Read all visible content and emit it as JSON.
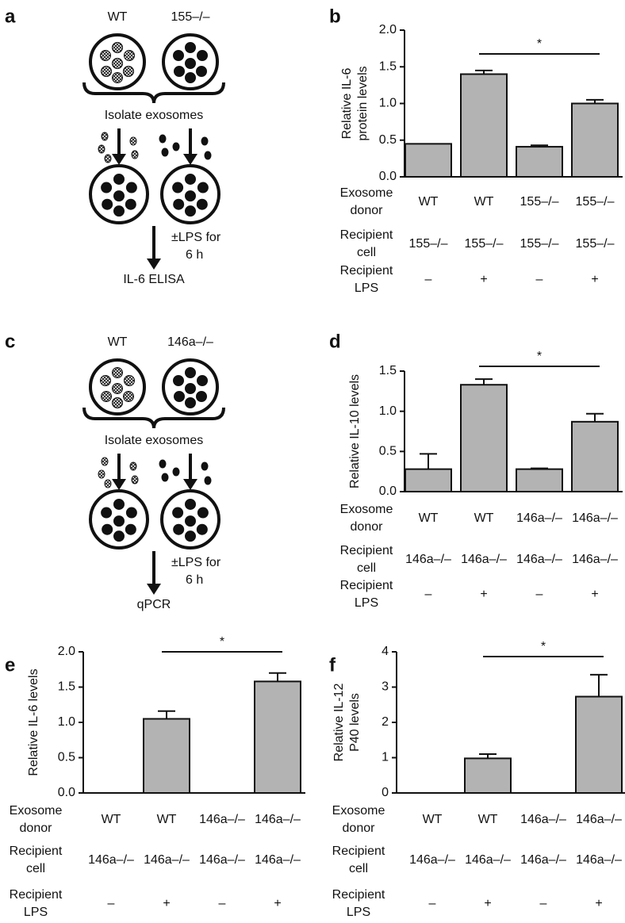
{
  "diagrams": [
    {
      "panel": "a",
      "left": "WT",
      "right": "155–/–",
      "step": "Isolate exosomes",
      "treatment": [
        "±LPS for",
        "6 h"
      ],
      "readout": "IL-6 ELISA"
    },
    {
      "panel": "c",
      "left": "WT",
      "right": "146a–/–",
      "step": "Isolate exosomes",
      "treatment": [
        "±LPS for",
        "6 h"
      ],
      "readout": "qPCR"
    }
  ],
  "chart_data": [
    {
      "panel": "b",
      "type": "bar",
      "ylabel": [
        "Relative IL-6",
        "protein levels"
      ],
      "color": "#b3b3b3",
      "categories": [
        "WT",
        "WT",
        "155–/–",
        "155–/–"
      ],
      "recipient_cell": [
        "155–/–",
        "155–/–",
        "155–/–",
        "155–/–"
      ],
      "recipient_lps": [
        "–",
        "+",
        "–",
        "+"
      ],
      "row_labels": [
        [
          "Exosome",
          "donor"
        ],
        [
          "Recipient",
          "cell"
        ],
        [
          "Recipient",
          "LPS"
        ]
      ],
      "values": [
        0.45,
        1.4,
        0.41,
        1.0
      ],
      "errors": [
        0,
        0.05,
        0.02,
        0.05
      ],
      "annotation": "*",
      "ylim": [
        0,
        2
      ],
      "yticks": [
        {
          "value": 0,
          "label": "0.0"
        },
        0.5,
        {
          "value": 1,
          "label": "1.0"
        },
        1.5,
        {
          "value": 2,
          "label": "2.0"
        }
      ]
    },
    {
      "panel": "d",
      "type": "bar",
      "ylabel": [
        "Relative IL-10 levels"
      ],
      "color": "#b3b3b3",
      "categories": [
        "WT",
        "WT",
        "146a–/–",
        "146a–/–"
      ],
      "recipient_cell": [
        "146a–/–",
        "146a–/–",
        "146a–/–",
        "146a–/–"
      ],
      "recipient_lps": [
        "–",
        "+",
        "–",
        "+"
      ],
      "row_labels": [
        [
          "Exosome",
          "donor"
        ],
        [
          "Recipient",
          "cell"
        ],
        [
          "Recipient",
          "LPS"
        ]
      ],
      "values": [
        0.28,
        1.33,
        0.28,
        0.87
      ],
      "errors": [
        0.19,
        0.07,
        0.01,
        0.1
      ],
      "annotation": "*",
      "ylim": [
        0,
        1.5
      ],
      "yticks": [
        {
          "value": 0,
          "label": "0.0"
        },
        0.5,
        {
          "value": 1,
          "label": "1.0"
        },
        1.5
      ]
    },
    {
      "panel": "e",
      "type": "bar",
      "ylabel": [
        "Relative IL-6 levels"
      ],
      "color": "#b3b3b3",
      "categories": [
        "WT",
        "WT",
        "146a–/–",
        "146a–/–"
      ],
      "recipient_cell": [
        "146a–/–",
        "146a–/–",
        "146a–/–",
        "146a–/–"
      ],
      "recipient_lps": [
        "–",
        "+",
        "–",
        "+"
      ],
      "row_labels": [
        [
          "Exosome",
          "donor"
        ],
        [
          "Recipient",
          "cell"
        ],
        [
          "Recipient",
          "LPS"
        ]
      ],
      "values": [
        0,
        1.05,
        0,
        1.58
      ],
      "errors": [
        0,
        0.11,
        0,
        0.12
      ],
      "annotation": "*",
      "ylim": [
        0,
        2
      ],
      "yticks": [
        {
          "value": 0,
          "label": "0.0"
        },
        0.5,
        {
          "value": 1,
          "label": "1.0"
        },
        1.5,
        {
          "value": 2,
          "label": "2.0"
        }
      ]
    },
    {
      "panel": "f",
      "type": "bar",
      "ylabel": [
        "Relative IL-12",
        "P40 levels"
      ],
      "color": "#b3b3b3",
      "categories": [
        "WT",
        "WT",
        "146a–/–",
        "146a–/–"
      ],
      "recipient_cell": [
        "146a–/–",
        "146a–/–",
        "146a–/–",
        "146a–/–"
      ],
      "recipient_lps": [
        "–",
        "+",
        "–",
        "+"
      ],
      "row_labels": [
        [
          "Exosome",
          "donor"
        ],
        [
          "Recipient",
          "cell"
        ],
        [
          "Recipient",
          "LPS"
        ]
      ],
      "values": [
        0,
        0.98,
        0,
        2.73
      ],
      "errors": [
        0,
        0.12,
        0,
        0.62
      ],
      "annotation": "*",
      "ylim": [
        0,
        4
      ],
      "yticks": [
        0,
        1,
        2,
        3,
        4
      ]
    }
  ]
}
